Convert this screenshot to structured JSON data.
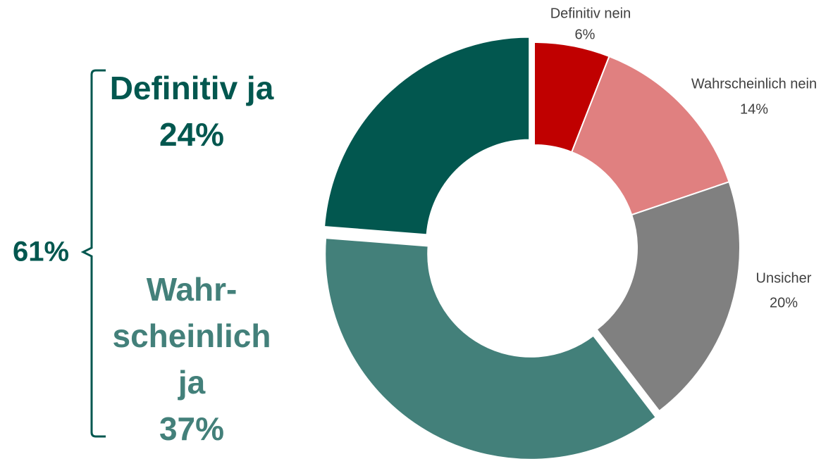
{
  "chart_data": {
    "type": "donut",
    "categories": [
      "Definitiv nein",
      "Wahrscheinlich nein",
      "Unsicher",
      "Wahr­scheinlich ja",
      "Definitiv ja"
    ],
    "values": [
      6,
      14,
      20,
      37,
      24
    ],
    "value_labels": [
      "6%",
      "14%",
      "20%",
      "37%",
      "24%"
    ],
    "colors": [
      "#c00000",
      "#e08080",
      "#808080",
      "#43807a",
      "#02574f"
    ],
    "exploded": [
      false,
      false,
      false,
      true,
      true
    ],
    "annotation": "61%"
  }
}
